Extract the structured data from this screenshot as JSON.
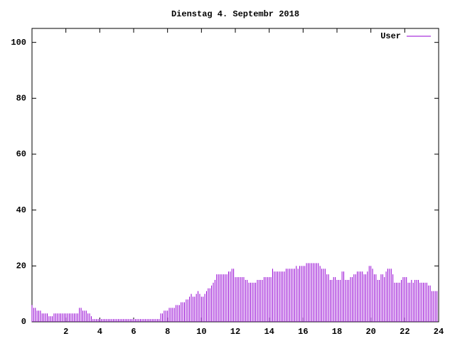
{
  "chart_data": {
    "type": "impulse",
    "title": "Dienstag 4. Septembr 2018",
    "x": [
      0,
      0.1,
      0.2,
      0.3,
      0.4,
      0.5,
      0.6,
      0.7,
      0.8,
      0.9,
      1,
      1.1,
      1.2,
      1.3,
      1.4,
      1.5,
      1.6,
      1.7,
      1.8,
      1.9,
      2,
      2.1,
      2.2,
      2.3,
      2.4,
      2.5,
      2.6,
      2.7,
      2.8,
      2.9,
      3,
      3.1,
      3.2,
      3.3,
      3.4,
      3.5,
      3.6,
      3.7,
      3.8,
      3.9,
      4,
      4.1,
      4.2,
      4.3,
      4.4,
      4.5,
      4.6,
      4.7,
      4.8,
      4.9,
      5,
      5.1,
      5.2,
      5.3,
      5.4,
      5.5,
      5.6,
      5.7,
      5.8,
      5.9,
      6,
      6.1,
      6.2,
      6.3,
      6.4,
      6.5,
      6.6,
      6.7,
      6.8,
      6.9,
      7,
      7.1,
      7.2,
      7.3,
      7.4,
      7.5,
      7.6,
      7.7,
      7.8,
      7.9,
      8,
      8.1,
      8.2,
      8.3,
      8.4,
      8.5,
      8.6,
      8.7,
      8.8,
      8.9,
      9,
      9.1,
      9.2,
      9.3,
      9.4,
      9.5,
      9.6,
      9.7,
      9.8,
      9.9,
      10,
      10.1,
      10.2,
      10.3,
      10.4,
      10.5,
      10.6,
      10.7,
      10.8,
      10.9,
      11,
      11.1,
      11.2,
      11.3,
      11.4,
      11.5,
      11.6,
      11.7,
      11.8,
      11.9,
      12,
      12.1,
      12.2,
      12.3,
      12.4,
      12.5,
      12.6,
      12.7,
      12.8,
      12.9,
      13,
      13.1,
      13.2,
      13.3,
      13.4,
      13.5,
      13.6,
      13.7,
      13.8,
      13.9,
      14,
      14.1,
      14.2,
      14.3,
      14.4,
      14.5,
      14.6,
      14.7,
      14.8,
      14.9,
      15,
      15.1,
      15.2,
      15.3,
      15.4,
      15.5,
      15.6,
      15.7,
      15.8,
      15.9,
      16,
      16.1,
      16.2,
      16.3,
      16.4,
      16.5,
      16.6,
      16.7,
      16.8,
      16.9,
      17,
      17.1,
      17.2,
      17.3,
      17.4,
      17.5,
      17.6,
      17.7,
      17.8,
      17.9,
      18,
      18.1,
      18.2,
      18.3,
      18.4,
      18.5,
      18.6,
      18.7,
      18.8,
      18.9,
      19,
      19.1,
      19.2,
      19.3,
      19.4,
      19.5,
      19.6,
      19.7,
      19.8,
      19.9,
      20,
      20.1,
      20.2,
      20.3,
      20.4,
      20.5,
      20.6,
      20.7,
      20.8,
      20.9,
      21,
      21.1,
      21.2,
      21.3,
      21.4,
      21.5,
      21.6,
      21.7,
      21.8,
      21.9,
      22,
      22.1,
      22.2,
      22.3,
      22.4,
      22.5,
      22.6,
      22.7,
      22.8,
      22.9,
      23,
      23.1,
      23.2,
      23.3,
      23.4,
      23.5,
      23.6,
      23.7,
      23.8,
      23.9
    ],
    "series": [
      {
        "name": "User",
        "color": "#9400d3",
        "values": [
          6,
          5,
          5,
          4,
          4,
          4,
          3,
          3,
          3,
          3,
          2,
          2,
          2,
          3,
          3,
          3,
          3,
          3,
          3,
          3,
          3,
          3,
          3,
          3,
          3,
          3,
          3,
          3,
          5,
          5,
          4,
          4,
          4,
          3,
          3,
          2,
          1,
          1,
          1,
          1,
          1,
          1,
          1,
          1,
          1,
          1,
          1,
          1,
          1,
          1,
          1,
          1,
          1,
          1,
          1,
          1,
          1,
          1,
          1,
          1,
          1,
          1,
          1,
          1,
          1,
          1,
          1,
          1,
          1,
          1,
          1,
          1,
          1,
          1,
          1,
          1,
          3,
          3,
          4,
          4,
          4,
          5,
          5,
          5,
          5,
          6,
          6,
          6,
          7,
          7,
          7,
          8,
          8,
          9,
          10,
          9,
          9,
          10,
          11,
          10,
          9,
          9,
          10,
          11,
          12,
          12,
          13,
          14,
          15,
          17,
          17,
          17,
          17,
          17,
          17,
          17,
          18,
          18,
          19,
          19,
          16,
          16,
          16,
          16,
          16,
          16,
          15,
          15,
          14,
          14,
          14,
          14,
          14,
          15,
          15,
          15,
          15,
          16,
          16,
          16,
          16,
          16,
          19,
          18,
          18,
          18,
          18,
          18,
          18,
          18,
          19,
          19,
          19,
          19,
          19,
          19,
          20,
          19,
          20,
          20,
          20,
          20,
          21,
          21,
          21,
          21,
          21,
          21,
          21,
          21,
          20,
          19,
          19,
          19,
          17,
          17,
          15,
          15,
          16,
          16,
          15,
          15,
          15,
          18,
          18,
          15,
          15,
          15,
          16,
          16,
          17,
          17,
          18,
          18,
          18,
          18,
          17,
          17,
          18,
          20,
          20,
          19,
          17,
          17,
          15,
          15,
          17,
          17,
          16,
          18,
          19,
          19,
          19,
          17,
          14,
          14,
          14,
          14,
          15,
          16,
          16,
          16,
          14,
          14,
          15,
          14,
          15,
          15,
          15,
          14,
          14,
          14,
          14,
          14,
          13,
          13,
          11,
          11,
          11,
          11
        ]
      }
    ],
    "xlim": [
      0,
      24
    ],
    "xticks": [
      2,
      4,
      6,
      8,
      10,
      12,
      14,
      16,
      18,
      20,
      22,
      24
    ],
    "ylim": [
      0,
      105
    ],
    "yticks": [
      0,
      20,
      40,
      60,
      80,
      100
    ]
  }
}
